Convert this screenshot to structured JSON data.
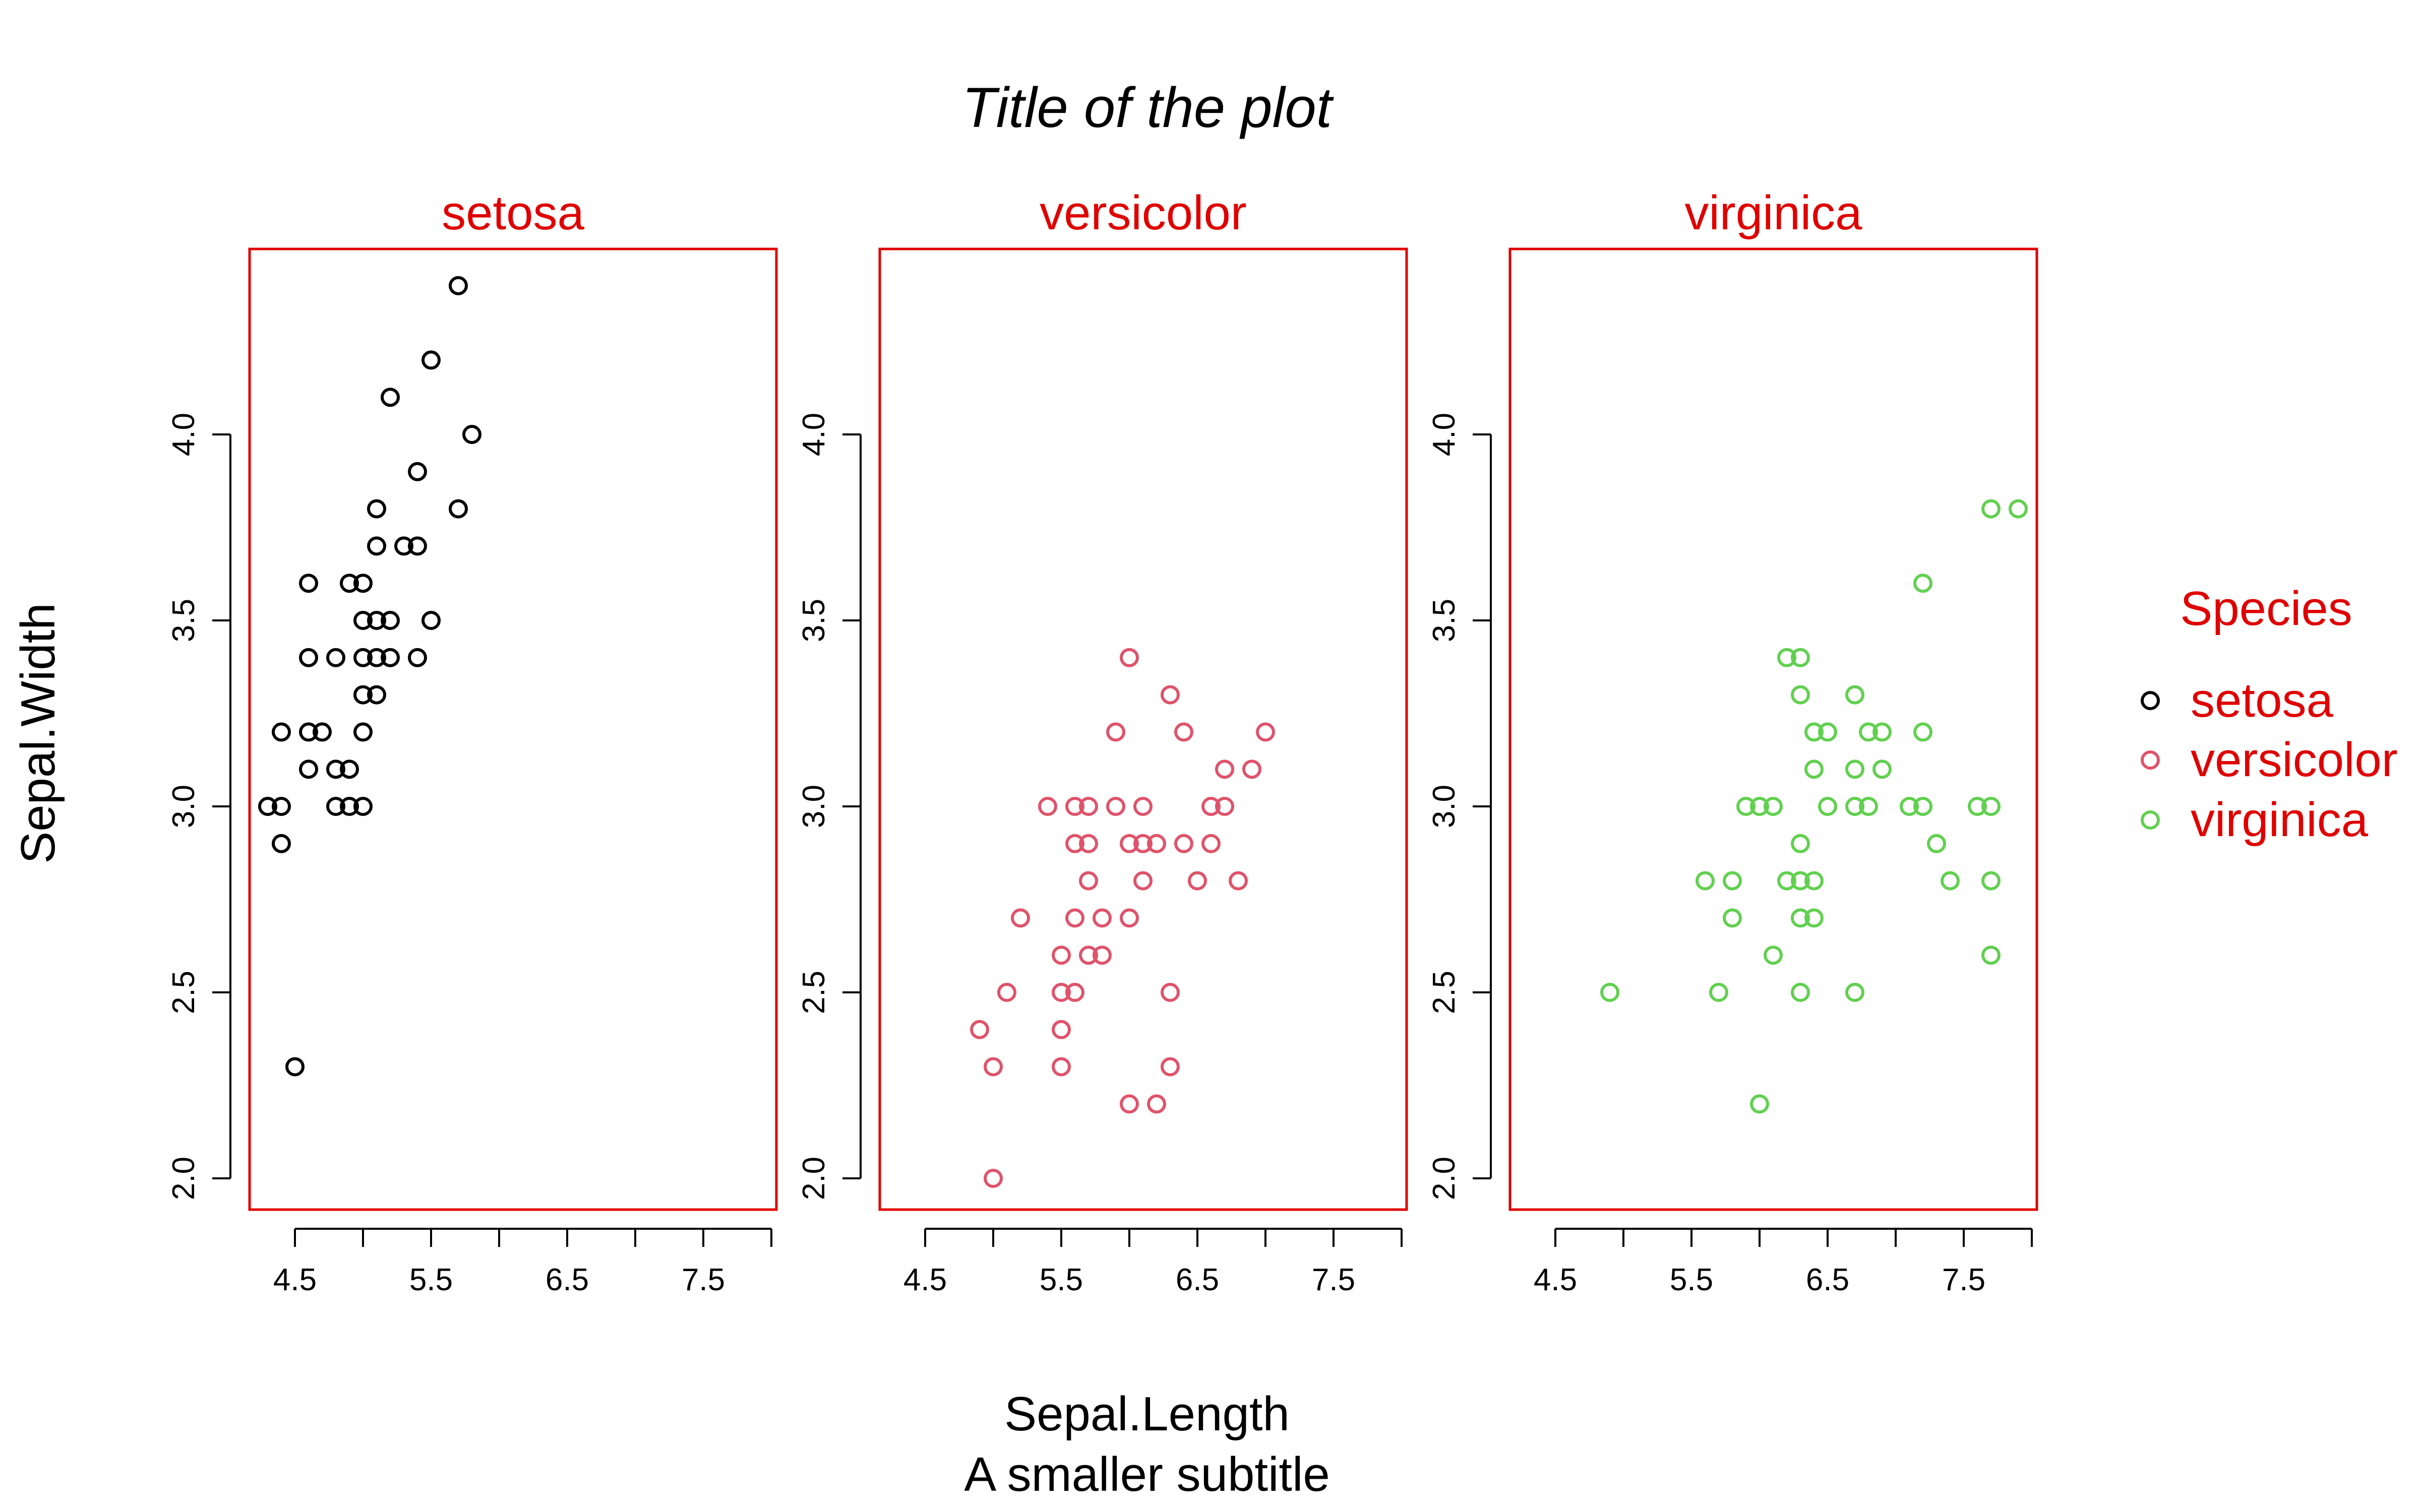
{
  "chart_data": {
    "type": "scatter",
    "title": "Title of the plot",
    "subtitle": "A smaller subtitle",
    "xlabel": "Sepal.Length",
    "ylabel": "Sepal.Width",
    "xlim": [
      4.1,
      8.0
    ],
    "ylim": [
      1.9,
      4.5
    ],
    "x_ticks": [
      4.5,
      5.5,
      6.5,
      7.5
    ],
    "x_ticks_unlabeled": [
      5.0,
      6.0,
      7.0,
      8.0
    ],
    "y_ticks": [
      2.0,
      2.5,
      3.0,
      3.5,
      4.0
    ],
    "tick_labels_x": [
      "4.5",
      "5.5",
      "6.5",
      "7.5"
    ],
    "tick_labels_y": [
      "2.0",
      "2.5",
      "3.0",
      "3.5",
      "4.0"
    ],
    "grid": false,
    "legend": {
      "title": "Species",
      "placement": "right",
      "entries": [
        "setosa",
        "versicolor",
        "virginica"
      ]
    },
    "colors": {
      "panel_border": "#DF0000",
      "strip_text": "#DF0000",
      "legend_text": "#DF0000",
      "setosa": "#000000",
      "versicolor": "#DF536B",
      "virginica": "#61D04F"
    },
    "series": [
      {
        "name": "setosa",
        "points": [
          [
            4.3,
            3.0
          ],
          [
            4.4,
            3.0
          ],
          [
            4.4,
            3.2
          ],
          [
            4.4,
            2.9
          ],
          [
            4.5,
            2.3
          ],
          [
            4.6,
            3.1
          ],
          [
            4.6,
            3.4
          ],
          [
            4.6,
            3.6
          ],
          [
            4.6,
            3.2
          ],
          [
            4.7,
            3.2
          ],
          [
            4.8,
            3.4
          ],
          [
            4.8,
            3.0
          ],
          [
            4.8,
            3.1
          ],
          [
            4.9,
            3.0
          ],
          [
            4.9,
            3.1
          ],
          [
            4.9,
            3.6
          ],
          [
            5.0,
            3.6
          ],
          [
            5.0,
            3.4
          ],
          [
            5.0,
            3.0
          ],
          [
            5.0,
            3.5
          ],
          [
            5.0,
            3.3
          ],
          [
            5.0,
            3.2
          ],
          [
            5.1,
            3.5
          ],
          [
            5.1,
            3.8
          ],
          [
            5.1,
            3.7
          ],
          [
            5.1,
            3.3
          ],
          [
            5.1,
            3.4
          ],
          [
            5.2,
            3.5
          ],
          [
            5.2,
            3.4
          ],
          [
            5.2,
            4.1
          ],
          [
            5.3,
            3.7
          ],
          [
            5.4,
            3.9
          ],
          [
            5.4,
            3.7
          ],
          [
            5.4,
            3.4
          ],
          [
            5.5,
            4.2
          ],
          [
            5.5,
            3.5
          ],
          [
            5.7,
            4.4
          ],
          [
            5.7,
            3.8
          ],
          [
            5.8,
            4.0
          ]
        ]
      },
      {
        "name": "versicolor",
        "points": [
          [
            4.9,
            2.4
          ],
          [
            5.0,
            2.3
          ],
          [
            5.0,
            2.0
          ],
          [
            5.1,
            2.5
          ],
          [
            5.2,
            2.7
          ],
          [
            5.4,
            3.0
          ],
          [
            5.5,
            2.3
          ],
          [
            5.5,
            2.4
          ],
          [
            5.5,
            2.5
          ],
          [
            5.5,
            2.6
          ],
          [
            5.6,
            2.9
          ],
          [
            5.6,
            3.0
          ],
          [
            5.6,
            2.5
          ],
          [
            5.6,
            2.7
          ],
          [
            5.7,
            2.8
          ],
          [
            5.7,
            2.6
          ],
          [
            5.7,
            3.0
          ],
          [
            5.7,
            2.9
          ],
          [
            5.8,
            2.7
          ],
          [
            5.8,
            2.6
          ],
          [
            5.9,
            3.0
          ],
          [
            5.9,
            3.2
          ],
          [
            6.0,
            2.2
          ],
          [
            6.0,
            2.9
          ],
          [
            6.0,
            2.7
          ],
          [
            6.0,
            3.4
          ],
          [
            6.1,
            2.9
          ],
          [
            6.1,
            2.8
          ],
          [
            6.1,
            3.0
          ],
          [
            6.2,
            2.2
          ],
          [
            6.2,
            2.9
          ],
          [
            6.3,
            3.3
          ],
          [
            6.3,
            2.5
          ],
          [
            6.3,
            2.3
          ],
          [
            6.4,
            3.2
          ],
          [
            6.4,
            2.9
          ],
          [
            6.5,
            2.8
          ],
          [
            6.6,
            2.9
          ],
          [
            6.6,
            3.0
          ],
          [
            6.7,
            3.1
          ],
          [
            6.7,
            3.0
          ],
          [
            6.8,
            2.8
          ],
          [
            6.9,
            3.1
          ],
          [
            7.0,
            3.2
          ]
        ]
      },
      {
        "name": "virginica",
        "points": [
          [
            4.9,
            2.5
          ],
          [
            5.6,
            2.8
          ],
          [
            5.7,
            2.5
          ],
          [
            5.8,
            2.7
          ],
          [
            5.8,
            2.8
          ],
          [
            5.9,
            3.0
          ],
          [
            6.0,
            2.2
          ],
          [
            6.0,
            3.0
          ],
          [
            6.1,
            3.0
          ],
          [
            6.1,
            2.6
          ],
          [
            6.2,
            2.8
          ],
          [
            6.2,
            3.4
          ],
          [
            6.3,
            3.3
          ],
          [
            6.3,
            2.9
          ],
          [
            6.3,
            2.5
          ],
          [
            6.3,
            2.7
          ],
          [
            6.3,
            2.8
          ],
          [
            6.3,
            3.4
          ],
          [
            6.4,
            2.7
          ],
          [
            6.4,
            3.2
          ],
          [
            6.4,
            2.8
          ],
          [
            6.4,
            3.1
          ],
          [
            6.5,
            3.0
          ],
          [
            6.5,
            3.2
          ],
          [
            6.7,
            2.5
          ],
          [
            6.7,
            3.3
          ],
          [
            6.7,
            3.0
          ],
          [
            6.7,
            3.1
          ],
          [
            6.8,
            3.0
          ],
          [
            6.8,
            3.2
          ],
          [
            6.9,
            3.1
          ],
          [
            6.9,
            3.2
          ],
          [
            7.1,
            3.0
          ],
          [
            7.2,
            3.6
          ],
          [
            7.2,
            3.2
          ],
          [
            7.2,
            3.0
          ],
          [
            7.3,
            2.9
          ],
          [
            7.4,
            2.8
          ],
          [
            7.6,
            3.0
          ],
          [
            7.7,
            3.8
          ],
          [
            7.7,
            2.6
          ],
          [
            7.7,
            2.8
          ],
          [
            7.7,
            3.0
          ],
          [
            7.9,
            3.8
          ]
        ]
      }
    ]
  }
}
